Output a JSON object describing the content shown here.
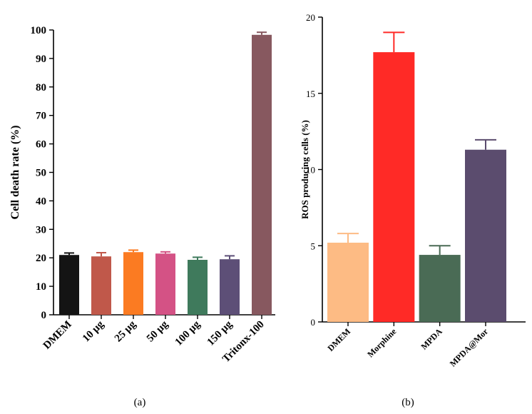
{
  "chart_data": [
    {
      "type": "bar",
      "panel": "a",
      "title": "",
      "xlabel": "",
      "ylabel": "Cell death rate (%)",
      "ylim": [
        0,
        100
      ],
      "yticks": [
        0,
        10,
        20,
        30,
        40,
        50,
        60,
        70,
        80,
        90,
        100
      ],
      "categories": [
        "DMEM",
        "10 μg",
        "25 μg",
        "50 μg",
        "100 μg",
        "150 μg",
        "Tritonx-100"
      ],
      "values": [
        21.0,
        20.5,
        22.0,
        21.5,
        19.3,
        19.5,
        98.3
      ],
      "errors": [
        0.7,
        1.3,
        0.7,
        0.6,
        0.9,
        1.2,
        0.9
      ],
      "colors": [
        "#141414",
        "#c0584a",
        "#fb7b22",
        "#d45285",
        "#3f7a5c",
        "#5d4f77",
        "#87585f"
      ]
    },
    {
      "type": "bar",
      "panel": "b",
      "title": "",
      "xlabel": "",
      "ylabel": "ROS producing cells (%)",
      "ylim": [
        0,
        20
      ],
      "yticks": [
        0,
        5,
        10,
        15,
        20
      ],
      "categories": [
        "DMEM",
        "Morphine",
        "MPDA",
        "MPDA@Mor"
      ],
      "values": [
        5.2,
        17.7,
        4.4,
        11.3
      ],
      "errors": [
        0.6,
        1.3,
        0.6,
        0.65
      ],
      "colors": [
        "#fdbb84",
        "#ff2a26",
        "#4a6b55",
        "#5b4c6e"
      ]
    }
  ],
  "captions": [
    "(a)",
    "(b)"
  ]
}
